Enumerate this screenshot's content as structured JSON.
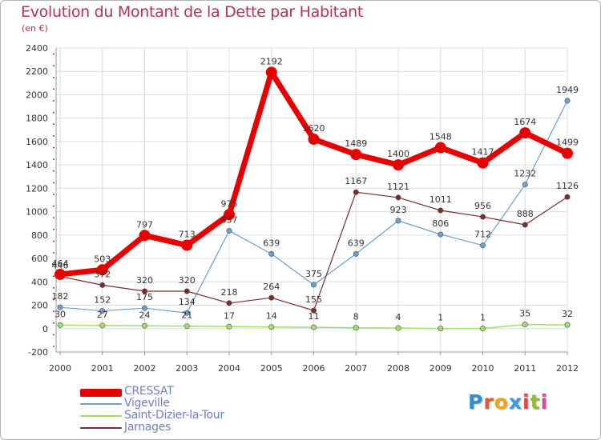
{
  "header": {
    "title": "Evolution du Montant de la Dette par Habitant",
    "subtitle": "(en €)"
  },
  "logo": {
    "letters": [
      "P",
      "r",
      "o",
      "x",
      "i",
      "t",
      "i"
    ],
    "colors": [
      "#2e8fd6",
      "#e35b2c",
      "#f2a51c",
      "#3a9be0",
      "#e64545",
      "#8fbf2f",
      "#d64ca0"
    ]
  },
  "chart_data": {
    "type": "line",
    "x": [
      "2000",
      "2001",
      "2002",
      "2003",
      "2004",
      "2005",
      "2006",
      "2007",
      "2008",
      "2009",
      "2010",
      "2011",
      "2012"
    ],
    "ylim": [
      -200,
      2400
    ],
    "yticks": [
      "-200",
      "0",
      "200",
      "400",
      "600",
      "800",
      "1000",
      "1200",
      "1400",
      "1600",
      "1800",
      "2000",
      "2200",
      "2400"
    ],
    "grid": true,
    "legend_position": "bottom-left",
    "series": [
      {
        "name": "CRESSAT",
        "color": "#e80000",
        "values": [
          464,
          503,
          797,
          713,
          975,
          2192,
          1620,
          1489,
          1400,
          1548,
          1417,
          1674,
          1499
        ],
        "labels": [
          "464",
          "503",
          "797",
          "713",
          "975",
          "2192",
          "1620",
          "1489",
          "1400",
          "1548",
          "1417",
          "1674",
          "1499"
        ]
      },
      {
        "name": "Vigeville",
        "color": "#6b9fd0",
        "values": [
          182,
          152,
          175,
          134,
          837,
          639,
          375,
          639,
          923,
          806,
          712,
          1232,
          1949
        ],
        "labels": [
          "182",
          "152",
          "175",
          "134",
          "837",
          "639",
          "375",
          "639",
          "923",
          "806",
          "712",
          "1232",
          "1949"
        ]
      },
      {
        "name": "Saint-Dizier-la-Tour",
        "color": "#9ee06a",
        "values": [
          30,
          27,
          24,
          21,
          17,
          14,
          11,
          8,
          4,
          1,
          1,
          35,
          32
        ],
        "labels": [
          "30",
          "27",
          "24",
          "21",
          "17",
          "14",
          "11",
          "8",
          "4",
          "1",
          "1",
          "35",
          "32"
        ]
      },
      {
        "name": "Jarnages",
        "color": "#7d2a2a",
        "values": [
          446,
          372,
          320,
          320,
          218,
          264,
          155,
          1167,
          1121,
          1011,
          956,
          888,
          1126
        ],
        "labels": [
          "446",
          "372",
          "320",
          "320",
          "218",
          "264",
          "155",
          "1167",
          "1121",
          "1011",
          "956",
          "888",
          "1126"
        ]
      }
    ]
  }
}
